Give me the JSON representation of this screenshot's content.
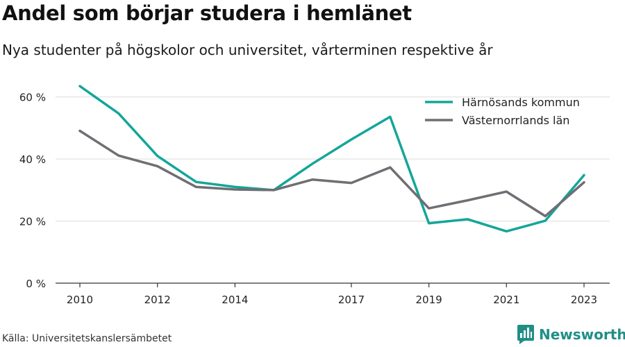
{
  "title": "Andel som börjar studera i hemlänet",
  "subtitle": "Nya studenter på högskolor och universitet, vårterminen respektive år",
  "source": "Källa: Universitetskanslersämbetet",
  "brand": {
    "name": "Newsworthy",
    "icon": "bar-chart-logo-icon",
    "color": "#1f8f86"
  },
  "chart_data": {
    "type": "line",
    "x": [
      2010,
      2011,
      2012,
      2013,
      2014,
      2015,
      2016,
      2017,
      2018,
      2019,
      2020,
      2021,
      2022,
      2023
    ],
    "xticks": [
      2010,
      2012,
      2014,
      2017,
      2019,
      2021,
      2023
    ],
    "ylim": [
      0,
      70
    ],
    "yticks": [
      0,
      20,
      40,
      60
    ],
    "ytick_labels": [
      "0 %",
      "20 %",
      "40 %",
      "60 %"
    ],
    "grid": true,
    "legend_position": "top-right",
    "series": [
      {
        "name": "Härnösands kommun",
        "color": "#13a699",
        "values": [
          63.5,
          54.7,
          41.0,
          32.6,
          31.0,
          30.0,
          38.5,
          46.3,
          53.6,
          19.3,
          20.6,
          16.7,
          20.1,
          34.8
        ]
      },
      {
        "name": "Västernorrlands län",
        "color": "#6e6e73",
        "values": [
          49.1,
          41.1,
          37.7,
          31.0,
          30.2,
          30.0,
          33.4,
          32.3,
          37.3,
          24.1,
          26.7,
          29.5,
          21.6,
          32.5
        ]
      }
    ]
  }
}
